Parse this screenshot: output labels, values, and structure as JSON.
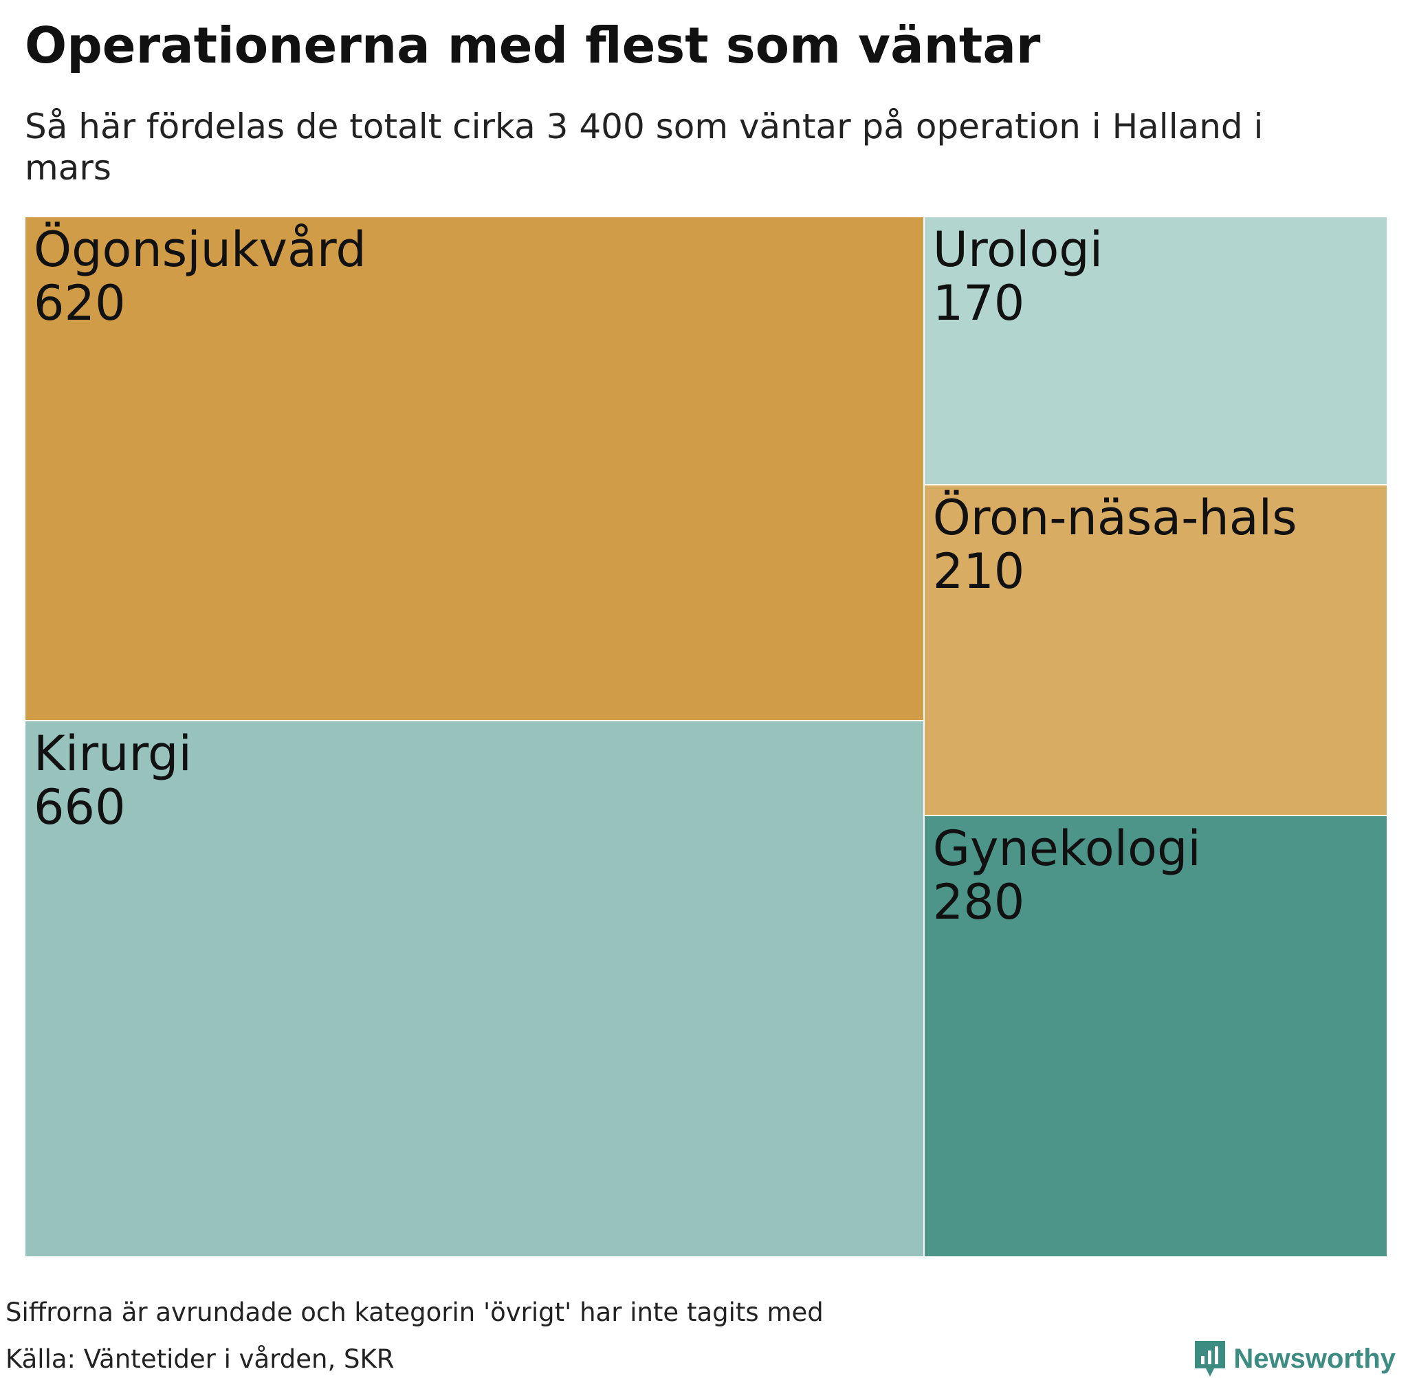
{
  "header": {
    "title": "Operationerna med flest som väntar",
    "subtitle": "Så här fördelas de totalt cirka 3 400 som väntar på operation i Halland i mars"
  },
  "footer": {
    "note": "Siffrorna är avrundade och kategorin 'övrigt' har inte tagits med",
    "source": "Källa: Väntetider i vården, SKR",
    "brand": "Newsworthy"
  },
  "colors": {
    "brand": "#3d8c82"
  },
  "chart_data": {
    "type": "treemap",
    "title": "Operationerna med flest som väntar",
    "subtitle": "Så här fördelas de totalt cirka 3 400 som väntar på operation i Halland i mars",
    "categories": [
      "Ögonsjukvård",
      "Kirurgi",
      "Urologi",
      "Öron-näsa-hals",
      "Gynekologi"
    ],
    "values": [
      620,
      660,
      170,
      210,
      280
    ],
    "colors": [
      "#d09c48",
      "#98c3bd",
      "#b2d6cf",
      "#d8ac62",
      "#4c9588"
    ]
  }
}
